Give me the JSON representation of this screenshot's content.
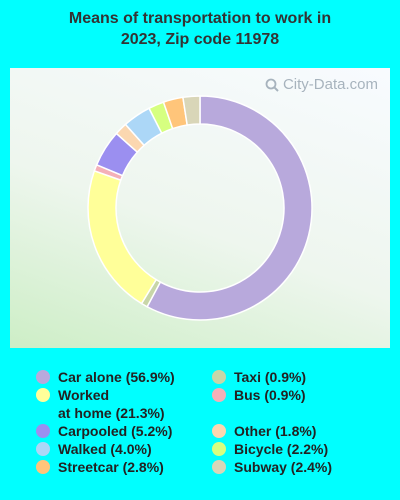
{
  "title_line1": "Means of transportation to work in",
  "title_line2": "2023, Zip code 11978",
  "watermark": "City-Data.com",
  "chart_data": {
    "type": "pie",
    "title": "Means of transportation to work in 2023, Zip code 11978",
    "slices": [
      {
        "label": "Car alone (56.9%)",
        "value": 56.9,
        "color": "#b8a9dc"
      },
      {
        "label": "Taxi (0.9%)",
        "value": 0.9,
        "color": "#c8d6a8"
      },
      {
        "label": "Worked\nat home (21.3%)",
        "value": 21.3,
        "color": "#ffff99"
      },
      {
        "label": "Bus (0.9%)",
        "value": 0.9,
        "color": "#f4b0b8"
      },
      {
        "label": "Carpooled (5.2%)",
        "value": 5.2,
        "color": "#9b8ff0"
      },
      {
        "label": "Other (1.8%)",
        "value": 1.8,
        "color": "#fbd7b0"
      },
      {
        "label": "Walked (4.0%)",
        "value": 4.0,
        "color": "#acd7f7"
      },
      {
        "label": "Bicycle (2.2%)",
        "value": 2.2,
        "color": "#d6ff80"
      },
      {
        "label": "Streetcar (2.8%)",
        "value": 2.8,
        "color": "#ffc57a"
      },
      {
        "label": "Subway (2.4%)",
        "value": 2.4,
        "color": "#d9d6b8"
      }
    ],
    "legend_placement": "bottom",
    "donut": true
  }
}
